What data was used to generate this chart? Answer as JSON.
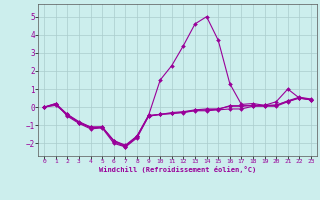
{
  "xlabel": "Windchill (Refroidissement éolien,°C)",
  "background_color": "#cceeed",
  "grid_color": "#aacccc",
  "line_color": "#990099",
  "xlim": [
    -0.5,
    23.5
  ],
  "ylim": [
    -2.7,
    5.7
  ],
  "yticks": [
    -2,
    -1,
    0,
    1,
    2,
    3,
    4,
    5
  ],
  "xticks": [
    0,
    1,
    2,
    3,
    4,
    5,
    6,
    7,
    8,
    9,
    10,
    11,
    12,
    13,
    14,
    15,
    16,
    17,
    18,
    19,
    20,
    21,
    22,
    23
  ],
  "series": [
    [
      0.0,
      0.2,
      -0.5,
      -0.9,
      -1.2,
      -1.15,
      -2.0,
      -2.2,
      -1.7,
      -0.5,
      -0.4,
      -0.35,
      -0.3,
      -0.2,
      -0.2,
      -0.15,
      -0.1,
      -0.1,
      0.05,
      0.05,
      0.05,
      0.3,
      0.5,
      0.4
    ],
    [
      0.0,
      0.1,
      -0.4,
      -0.8,
      -1.1,
      -1.1,
      -1.85,
      -2.15,
      -1.6,
      -0.45,
      1.5,
      2.3,
      3.4,
      4.6,
      5.0,
      3.7,
      1.3,
      0.15,
      0.2,
      0.1,
      0.3,
      1.0,
      0.5,
      0.4
    ],
    [
      0.0,
      0.2,
      -0.4,
      -0.85,
      -1.1,
      -1.1,
      -1.85,
      -2.1,
      -1.6,
      -0.45,
      -0.4,
      -0.3,
      -0.25,
      -0.15,
      -0.1,
      -0.1,
      0.05,
      0.05,
      0.1,
      0.1,
      0.1,
      0.35,
      0.55,
      0.45
    ],
    [
      0.0,
      0.15,
      -0.45,
      -0.85,
      -1.15,
      -1.1,
      -1.9,
      -2.2,
      -1.65,
      -0.5,
      -0.4,
      -0.35,
      -0.28,
      -0.18,
      -0.15,
      -0.12,
      0.08,
      0.08,
      0.08,
      0.08,
      0.12,
      0.32,
      0.52,
      0.42
    ]
  ]
}
